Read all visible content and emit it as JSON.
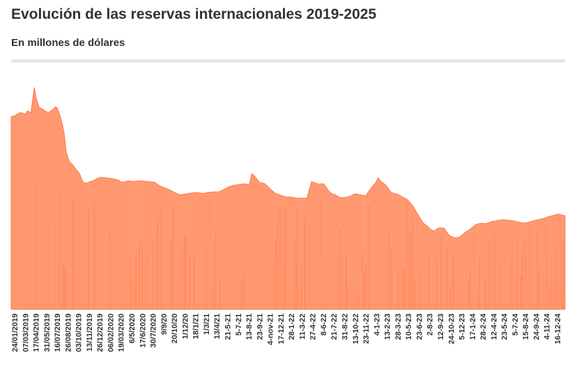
{
  "header": {
    "title": "Evolución de las reservas internacionales 2019-2025",
    "subtitle": "En millones de dólares"
  },
  "colors": {
    "fill": "#ff9a73",
    "stroke": "#ff7a45",
    "spike": "#ff6a30",
    "rule": "#e6e6e6"
  },
  "chart_data": {
    "type": "area",
    "title": "Evolución de las reservas internacionales 2019-2025",
    "subtitle": "En millones de dólares",
    "xlabel": "",
    "ylabel": "",
    "grid": false,
    "legend": "none",
    "x_range": [
      "2019-01-01",
      "2025-01-31"
    ],
    "ylim": [
      0,
      80000
    ],
    "tick_labels": [
      "24/01/2019",
      "07/03/2019",
      "17/04/2019",
      "31/05/2019",
      "16/07/2019",
      "26/08/2019",
      "03/10/2019",
      "13/11/2019",
      "26/12/2019",
      "06/02/2020",
      "19/03/2020",
      "6/5/2020",
      "17/6/2020",
      "30/7/2020",
      "9/9/20",
      "20/10/20",
      "1/12/20",
      "18/1/21",
      "1/3/21",
      "13/4/21",
      "21-5-21",
      "5-7-21",
      "13-8-21",
      "23-9-21",
      "4-nov-21",
      "17-12-21",
      "28-1-22",
      "11-3-22",
      "27-4-22",
      "8-6-22",
      "21-7-22",
      "31-8-22",
      "13-10-22",
      "23-11-22",
      "4-1-23",
      "13-2-23",
      "28-3-23",
      "10-5-23",
      "23-6-23",
      "2-8-23",
      "12-9-23",
      "24-10-23",
      "5-12-23",
      "17-1-24",
      "28-2-24",
      "12-4-24",
      "23-5-24",
      "5-7-24",
      "15-8-24",
      "24-9-24",
      "4-11-24",
      "16-12-24"
    ],
    "x": [
      "2019-01-01",
      "2019-01-15",
      "2019-01-24",
      "2019-02-07",
      "2019-02-28",
      "2019-03-07",
      "2019-03-21",
      "2019-04-04",
      "2019-04-10",
      "2019-04-17",
      "2019-04-24",
      "2019-05-08",
      "2019-05-17",
      "2019-05-31",
      "2019-06-14",
      "2019-06-28",
      "2019-07-05",
      "2019-07-10",
      "2019-07-16",
      "2019-07-25",
      "2019-08-02",
      "2019-08-09",
      "2019-08-16",
      "2019-08-26",
      "2019-09-05",
      "2019-09-16",
      "2019-10-03",
      "2019-10-15",
      "2019-10-29",
      "2019-11-13",
      "2019-11-29",
      "2019-12-13",
      "2019-12-26",
      "2020-01-15",
      "2020-02-06",
      "2020-03-05",
      "2020-03-19",
      "2020-04-15",
      "2020-05-06",
      "2020-05-27",
      "2020-06-17",
      "2020-07-08",
      "2020-07-30",
      "2020-08-19",
      "2020-09-09",
      "2020-09-30",
      "2020-10-20",
      "2020-11-10",
      "2020-12-01",
      "2020-12-28",
      "2021-01-18",
      "2021-02-08",
      "2021-03-01",
      "2021-03-22",
      "2021-04-13",
      "2021-05-03",
      "2021-05-21",
      "2021-06-11",
      "2021-07-05",
      "2021-07-26",
      "2021-08-13",
      "2021-08-23",
      "2021-09-02",
      "2021-09-23",
      "2021-10-14",
      "2021-11-04",
      "2021-11-25",
      "2021-12-17",
      "2022-01-07",
      "2022-01-28",
      "2022-02-18",
      "2022-03-11",
      "2022-04-01",
      "2022-04-20",
      "2022-04-27",
      "2022-05-18",
      "2022-06-08",
      "2022-06-29",
      "2022-07-14",
      "2022-07-21",
      "2022-08-10",
      "2022-08-31",
      "2022-09-20",
      "2022-10-13",
      "2022-11-02",
      "2022-11-23",
      "2022-12-14",
      "2023-01-04",
      "2023-01-11",
      "2023-01-25",
      "2023-02-13",
      "2023-03-06",
      "2023-03-28",
      "2023-04-18",
      "2023-05-10",
      "2023-05-31",
      "2023-06-23",
      "2023-07-12",
      "2023-08-02",
      "2023-08-09",
      "2023-08-23",
      "2023-09-12",
      "2023-10-03",
      "2023-10-24",
      "2023-11-14",
      "2023-12-05",
      "2023-12-26",
      "2024-01-17",
      "2024-02-07",
      "2024-02-28",
      "2024-03-20",
      "2024-04-12",
      "2024-05-02",
      "2024-05-23",
      "2024-06-13",
      "2024-07-05",
      "2024-07-25",
      "2024-08-15",
      "2024-09-04",
      "2024-09-24",
      "2024-10-15",
      "2024-11-04",
      "2024-11-25",
      "2024-12-16",
      "2025-01-06",
      "2025-01-31"
    ],
    "values": [
      64300,
      64600,
      65100,
      65700,
      65200,
      66300,
      65600,
      74100,
      71000,
      69100,
      67400,
      66800,
      66200,
      65700,
      66500,
      67600,
      67200,
      66100,
      64700,
      62000,
      58500,
      53300,
      50700,
      49000,
      48200,
      47000,
      45200,
      42600,
      42100,
      42600,
      43100,
      43700,
      44100,
      43900,
      43700,
      43200,
      42400,
      42900,
      42700,
      42900,
      42800,
      42600,
      42400,
      41200,
      40500,
      39800,
      38900,
      38200,
      38500,
      38900,
      39000,
      38700,
      39000,
      39200,
      39200,
      40000,
      40800,
      41400,
      41700,
      41900,
      41500,
      45300,
      44600,
      42400,
      42000,
      40300,
      38800,
      38100,
      37500,
      37500,
      37100,
      37100,
      37100,
      42600,
      42500,
      41800,
      41900,
      39400,
      38400,
      38400,
      37400,
      37300,
      37700,
      38600,
      38200,
      37900,
      40400,
      42500,
      43900,
      42600,
      41400,
      39000,
      38500,
      37600,
      36600,
      34500,
      31400,
      28800,
      27500,
      26800,
      26100,
      27200,
      27100,
      24700,
      23900,
      24100,
      25600,
      26800,
      28300,
      28800,
      28600,
      29300,
      29600,
      29900,
      29800,
      29600,
      29200,
      28800,
      29000,
      29500,
      29900,
      30300,
      30900,
      31400,
      31800,
      31200
    ],
    "source_spikes": "values shown as dense area with thin vertical striations"
  }
}
